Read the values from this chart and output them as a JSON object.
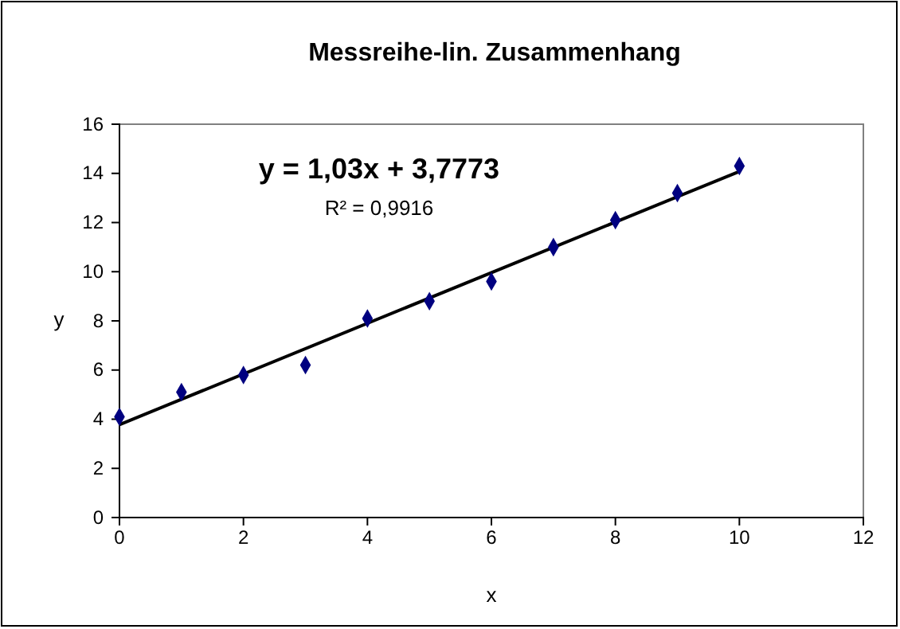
{
  "chart_data": {
    "type": "scatter",
    "title": "Messreihe-lin. Zusammenhang",
    "xlabel": "x",
    "ylabel": "y",
    "annotations": [
      "y = 1,03x + 3,7773",
      "R² = 0,9916"
    ],
    "xlim": [
      0,
      12
    ],
    "ylim": [
      0,
      16
    ],
    "xticks": [
      0,
      2,
      4,
      6,
      8,
      10,
      12
    ],
    "yticks": [
      0,
      2,
      4,
      6,
      8,
      10,
      12,
      14,
      16
    ],
    "grid": false,
    "line_style": "solid",
    "series": [
      {
        "marker": "diamond",
        "color": "#000080",
        "x": [
          0,
          1,
          2,
          3,
          4,
          5,
          6,
          7,
          8,
          9,
          10
        ],
        "values": [
          4.1,
          5.1,
          5.8,
          6.2,
          8.1,
          8.8,
          9.6,
          11.0,
          12.1,
          13.2,
          14.3
        ]
      },
      {
        "type": "line",
        "marker": "none",
        "color": "#000000",
        "x": [
          0,
          10
        ],
        "values": [
          3.78,
          14.08
        ]
      }
    ]
  }
}
